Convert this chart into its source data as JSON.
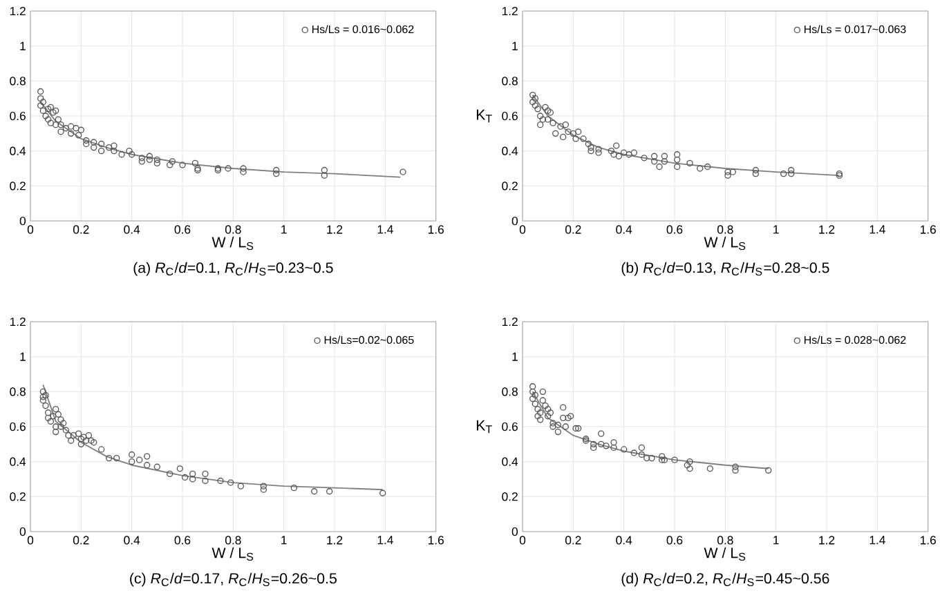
{
  "chart_data": [
    {
      "type": "scatter",
      "title": "(a) *R*$_{C}$/*d*=0.1, *R*$_{C}$/*H*$_{S}$=0.23~0.5",
      "xlabel": "W / L$_{S}$",
      "xlim": [
        0,
        1.6
      ],
      "xticks": [
        0,
        0.2,
        0.4,
        0.6,
        0.8,
        1,
        1.2,
        1.4,
        1.6
      ],
      "ylim": [
        0,
        1.2
      ],
      "yticks": [
        0,
        0.2,
        0.4,
        0.6,
        0.8,
        1,
        1.2
      ],
      "grid": true,
      "legend": "top right",
      "marker": "circle",
      "series": [
        {
          "name": "Hs/Ls = 0.016~0.062",
          "color": "#555555",
          "x": [
            0.04,
            0.04,
            0.04,
            0.05,
            0.05,
            0.06,
            0.07,
            0.07,
            0.08,
            0.08,
            0.09,
            0.1,
            0.1,
            0.11,
            0.12,
            0.12,
            0.14,
            0.16,
            0.16,
            0.18,
            0.19,
            0.2,
            0.22,
            0.22,
            0.25,
            0.25,
            0.28,
            0.28,
            0.31,
            0.33,
            0.33,
            0.36,
            0.39,
            0.4,
            0.44,
            0.44,
            0.47,
            0.47,
            0.5,
            0.5,
            0.55,
            0.56,
            0.6,
            0.65,
            0.66,
            0.66,
            0.74,
            0.74,
            0.78,
            0.84,
            0.84,
            0.97,
            0.97,
            1.16,
            1.16,
            1.47
          ],
          "values": [
            0.74,
            0.7,
            0.66,
            0.68,
            0.63,
            0.6,
            0.58,
            0.64,
            0.65,
            0.56,
            0.62,
            0.63,
            0.55,
            0.58,
            0.51,
            0.55,
            0.53,
            0.54,
            0.5,
            0.53,
            0.49,
            0.52,
            0.46,
            0.44,
            0.42,
            0.45,
            0.44,
            0.4,
            0.42,
            0.43,
            0.4,
            0.38,
            0.4,
            0.38,
            0.34,
            0.36,
            0.37,
            0.35,
            0.33,
            0.35,
            0.32,
            0.34,
            0.32,
            0.33,
            0.3,
            0.29,
            0.29,
            0.3,
            0.3,
            0.28,
            0.3,
            0.29,
            0.27,
            0.29,
            0.26,
            0.28
          ]
        },
        {
          "type": "line",
          "marker": "none",
          "color": "#808080",
          "x": [
            0.04,
            0.1,
            0.2,
            0.3,
            0.4,
            0.6,
            0.8,
            1.0,
            1.2,
            1.46
          ],
          "values": [
            0.68,
            0.57,
            0.47,
            0.42,
            0.38,
            0.33,
            0.3,
            0.28,
            0.27,
            0.25
          ]
        }
      ]
    },
    {
      "type": "scatter",
      "title": "(b) *R*$_{C}$/*d*=0.13, *R*$_{C}$/*H*$_{S}$=0.28~0.5",
      "xlabel": "W / L$_{S}$",
      "ylabel": "K$_{T}$",
      "xlim": [
        0,
        1.6
      ],
      "xticks": [
        0,
        0.2,
        0.4,
        0.6,
        0.8,
        1,
        1.2,
        1.4,
        1.6
      ],
      "ylim": [
        0,
        1.2
      ],
      "yticks": [
        0,
        0.2,
        0.4,
        0.6,
        0.8,
        1,
        1.2
      ],
      "grid": true,
      "legend": "top right",
      "marker": "circle",
      "series": [
        {
          "name": "Hs/Ls = 0.017~0.063",
          "color": "#555555",
          "x": [
            0.04,
            0.04,
            0.05,
            0.05,
            0.06,
            0.07,
            0.07,
            0.08,
            0.09,
            0.1,
            0.1,
            0.11,
            0.12,
            0.13,
            0.15,
            0.16,
            0.17,
            0.18,
            0.2,
            0.21,
            0.22,
            0.24,
            0.26,
            0.27,
            0.27,
            0.3,
            0.3,
            0.35,
            0.36,
            0.37,
            0.38,
            0.4,
            0.42,
            0.44,
            0.48,
            0.52,
            0.52,
            0.54,
            0.56,
            0.56,
            0.61,
            0.61,
            0.61,
            0.66,
            0.7,
            0.73,
            0.81,
            0.81,
            0.83,
            0.92,
            0.92,
            1.03,
            1.06,
            1.06,
            1.25,
            1.25
          ],
          "values": [
            0.72,
            0.68,
            0.7,
            0.66,
            0.64,
            0.6,
            0.55,
            0.58,
            0.65,
            0.63,
            0.58,
            0.62,
            0.56,
            0.5,
            0.54,
            0.48,
            0.55,
            0.51,
            0.5,
            0.47,
            0.51,
            0.47,
            0.44,
            0.4,
            0.42,
            0.41,
            0.39,
            0.4,
            0.38,
            0.43,
            0.37,
            0.39,
            0.38,
            0.39,
            0.36,
            0.34,
            0.37,
            0.31,
            0.34,
            0.37,
            0.31,
            0.35,
            0.38,
            0.33,
            0.3,
            0.31,
            0.26,
            0.28,
            0.28,
            0.29,
            0.27,
            0.27,
            0.29,
            0.27,
            0.27,
            0.26
          ]
        },
        {
          "type": "line",
          "marker": "none",
          "color": "#808080",
          "x": [
            0.04,
            0.1,
            0.2,
            0.3,
            0.4,
            0.6,
            0.8,
            1.0,
            1.25
          ],
          "values": [
            0.72,
            0.6,
            0.49,
            0.42,
            0.38,
            0.33,
            0.3,
            0.28,
            0.26
          ]
        }
      ]
    },
    {
      "type": "scatter",
      "title": "(c) *R*$_{C}$/*d*=0.17, *R*$_{C}$/*H*$_{S}$=0.26~0.5",
      "xlabel": "W / L$_{S}$",
      "xlim": [
        0,
        1.6
      ],
      "xticks": [
        0,
        0.2,
        0.4,
        0.6,
        0.8,
        1,
        1.2,
        1.4,
        1.6
      ],
      "ylim": [
        0,
        1.2
      ],
      "yticks": [
        0,
        0.2,
        0.4,
        0.6,
        0.8,
        1,
        1.2
      ],
      "grid": true,
      "legend": "top right",
      "marker": "circle",
      "series": [
        {
          "name": "Hs/Ls=0.02~0.065",
          "color": "#555555",
          "x": [
            0.05,
            0.05,
            0.05,
            0.06,
            0.06,
            0.07,
            0.07,
            0.08,
            0.09,
            0.1,
            0.1,
            0.1,
            0.11,
            0.12,
            0.12,
            0.13,
            0.14,
            0.15,
            0.16,
            0.17,
            0.19,
            0.2,
            0.2,
            0.21,
            0.22,
            0.23,
            0.24,
            0.25,
            0.28,
            0.31,
            0.34,
            0.4,
            0.4,
            0.43,
            0.46,
            0.46,
            0.5,
            0.55,
            0.59,
            0.61,
            0.64,
            0.64,
            0.69,
            0.69,
            0.75,
            0.79,
            0.83,
            0.92,
            0.92,
            1.04,
            1.12,
            1.18,
            1.39
          ],
          "values": [
            0.8,
            0.77,
            0.75,
            0.78,
            0.72,
            0.68,
            0.65,
            0.63,
            0.66,
            0.7,
            0.57,
            0.6,
            0.67,
            0.64,
            0.6,
            0.62,
            0.58,
            0.55,
            0.52,
            0.55,
            0.56,
            0.53,
            0.5,
            0.54,
            0.52,
            0.55,
            0.52,
            0.51,
            0.47,
            0.42,
            0.42,
            0.44,
            0.4,
            0.41,
            0.43,
            0.38,
            0.37,
            0.33,
            0.36,
            0.31,
            0.33,
            0.3,
            0.33,
            0.29,
            0.29,
            0.28,
            0.26,
            0.26,
            0.24,
            0.25,
            0.23,
            0.23,
            0.22
          ]
        },
        {
          "type": "line",
          "marker": "none",
          "color": "#808080",
          "x": [
            0.05,
            0.1,
            0.2,
            0.3,
            0.4,
            0.6,
            0.8,
            1.0,
            1.2,
            1.39
          ],
          "values": [
            0.84,
            0.63,
            0.51,
            0.43,
            0.38,
            0.32,
            0.28,
            0.26,
            0.25,
            0.24
          ]
        }
      ]
    },
    {
      "type": "scatter",
      "title": "(d) *R*$_{C}$/*d*=0.2, *R*$_{C}$/*H*$_{S}$=0.45~0.56",
      "xlabel": "W / L$_{S}$",
      "ylabel": "K$_{T}$",
      "xlim": [
        0,
        1.6
      ],
      "xticks": [
        0,
        0.2,
        0.4,
        0.6,
        0.8,
        1,
        1.2,
        1.4,
        1.6
      ],
      "ylim": [
        0,
        1.2
      ],
      "yticks": [
        0,
        0.2,
        0.4,
        0.6,
        0.8,
        1,
        1.2
      ],
      "grid": true,
      "legend": "top right",
      "marker": "circle",
      "series": [
        {
          "name": "Hs/Ls = 0.028~0.062",
          "color": "#555555",
          "x": [
            0.04,
            0.04,
            0.04,
            0.05,
            0.05,
            0.06,
            0.06,
            0.07,
            0.07,
            0.08,
            0.08,
            0.09,
            0.1,
            0.1,
            0.11,
            0.12,
            0.12,
            0.14,
            0.14,
            0.16,
            0.16,
            0.17,
            0.18,
            0.19,
            0.21,
            0.22,
            0.25,
            0.25,
            0.28,
            0.28,
            0.31,
            0.31,
            0.33,
            0.36,
            0.36,
            0.4,
            0.44,
            0.47,
            0.47,
            0.49,
            0.51,
            0.55,
            0.55,
            0.56,
            0.6,
            0.65,
            0.66,
            0.66,
            0.74,
            0.84,
            0.84,
            0.97
          ],
          "values": [
            0.83,
            0.8,
            0.76,
            0.78,
            0.73,
            0.7,
            0.66,
            0.68,
            0.64,
            0.8,
            0.75,
            0.72,
            0.7,
            0.66,
            0.68,
            0.62,
            0.6,
            0.57,
            0.61,
            0.71,
            0.65,
            0.6,
            0.65,
            0.66,
            0.59,
            0.59,
            0.53,
            0.52,
            0.5,
            0.48,
            0.56,
            0.5,
            0.49,
            0.51,
            0.48,
            0.47,
            0.45,
            0.48,
            0.44,
            0.42,
            0.42,
            0.43,
            0.41,
            0.41,
            0.41,
            0.38,
            0.4,
            0.36,
            0.36,
            0.37,
            0.35,
            0.35
          ]
        },
        {
          "type": "line",
          "marker": "none",
          "color": "#808080",
          "x": [
            0.04,
            0.1,
            0.2,
            0.3,
            0.4,
            0.6,
            0.8,
            0.97
          ],
          "values": [
            0.8,
            0.65,
            0.55,
            0.5,
            0.46,
            0.41,
            0.38,
            0.36
          ]
        }
      ]
    }
  ]
}
